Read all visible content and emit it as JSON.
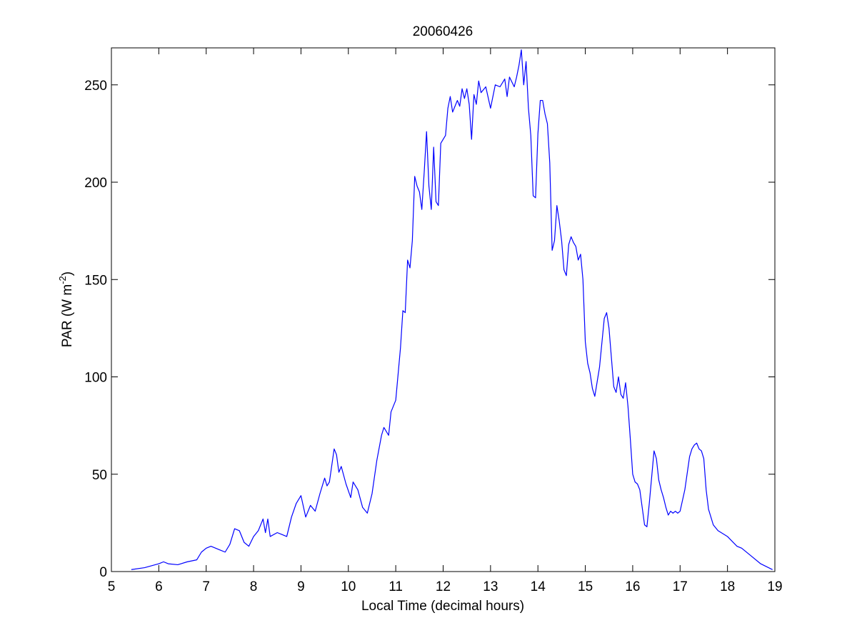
{
  "chart_data": {
    "type": "line",
    "title": "20060426",
    "xlabel": "Local Time (decimal hours)",
    "ylabel": {
      "text": "PAR (W m",
      "superscript": "-2",
      "suffix": ")"
    },
    "color": "#0000ff",
    "xlim": [
      5,
      19
    ],
    "xticks": [
      5,
      6,
      7,
      8,
      9,
      10,
      11,
      12,
      13,
      14,
      15,
      16,
      17,
      18,
      19
    ],
    "ylim": [
      0,
      269
    ],
    "yticks": [
      0,
      50,
      100,
      150,
      200,
      250
    ],
    "x": [
      5.42,
      5.7,
      6.0,
      6.1,
      6.2,
      6.4,
      6.6,
      6.8,
      6.9,
      7.0,
      7.1,
      7.2,
      7.3,
      7.4,
      7.5,
      7.6,
      7.7,
      7.8,
      7.9,
      8.0,
      8.1,
      8.2,
      8.25,
      8.3,
      8.35,
      8.5,
      8.6,
      8.7,
      8.8,
      8.9,
      9.0,
      9.1,
      9.2,
      9.3,
      9.4,
      9.5,
      9.55,
      9.6,
      9.7,
      9.75,
      9.8,
      9.85,
      9.95,
      10.05,
      10.1,
      10.2,
      10.3,
      10.4,
      10.5,
      10.6,
      10.7,
      10.75,
      10.85,
      10.9,
      11.0,
      11.1,
      11.15,
      11.2,
      11.25,
      11.3,
      11.35,
      11.4,
      11.45,
      11.5,
      11.55,
      11.6,
      11.65,
      11.7,
      11.75,
      11.8,
      11.85,
      11.9,
      11.95,
      12.05,
      12.1,
      12.15,
      12.2,
      12.3,
      12.35,
      12.4,
      12.45,
      12.5,
      12.55,
      12.6,
      12.65,
      12.7,
      12.75,
      12.8,
      12.9,
      13.0,
      13.1,
      13.2,
      13.3,
      13.35,
      13.4,
      13.5,
      13.55,
      13.6,
      13.65,
      13.7,
      13.75,
      13.8,
      13.85,
      13.9,
      13.95,
      14.0,
      14.05,
      14.1,
      14.15,
      14.2,
      14.25,
      14.3,
      14.35,
      14.4,
      14.45,
      14.5,
      14.55,
      14.6,
      14.65,
      14.7,
      14.75,
      14.8,
      14.85,
      14.9,
      14.95,
      15.0,
      15.05,
      15.1,
      15.15,
      15.2,
      15.3,
      15.4,
      15.45,
      15.5,
      15.55,
      15.6,
      15.65,
      15.7,
      15.75,
      15.8,
      15.85,
      15.9,
      15.95,
      16.0,
      16.05,
      16.1,
      16.15,
      16.2,
      16.25,
      16.3,
      16.35,
      16.45,
      16.5,
      16.55,
      16.6,
      16.65,
      16.7,
      16.75,
      16.8,
      16.85,
      16.9,
      16.95,
      17.0,
      17.1,
      17.2,
      17.25,
      17.3,
      17.35,
      17.4,
      17.45,
      17.5,
      17.55,
      17.6,
      17.7,
      17.8,
      18.0,
      18.2,
      18.3,
      18.5,
      18.7,
      18.95
    ],
    "values": [
      1,
      2,
      4,
      5,
      4,
      3.5,
      5,
      6,
      10,
      12,
      13,
      12,
      11,
      10,
      14,
      22,
      21,
      15,
      13,
      18,
      21,
      27,
      20,
      27,
      18,
      20,
      19,
      18,
      28,
      35,
      39,
      28,
      34,
      31,
      40,
      48,
      44,
      46,
      63,
      60,
      51,
      54,
      45,
      38,
      46,
      42,
      33,
      30,
      40,
      57,
      70,
      74,
      70,
      82,
      88,
      115,
      134,
      133,
      160,
      156,
      170,
      203,
      198,
      195,
      186,
      205,
      226,
      198,
      186,
      218,
      190,
      188,
      220,
      224,
      238,
      244,
      236,
      242,
      239,
      248,
      243,
      248,
      240,
      222,
      245,
      240,
      252,
      246,
      249,
      238,
      250,
      249,
      253,
      244,
      254,
      249,
      254,
      260,
      268,
      250,
      262,
      238,
      224,
      193,
      192,
      225,
      242,
      242,
      235,
      230,
      210,
      165,
      170,
      188,
      180,
      170,
      155,
      152,
      168,
      172,
      169,
      167,
      160,
      163,
      150,
      118,
      107,
      102,
      94,
      90,
      105,
      130,
      133,
      125,
      110,
      95,
      92,
      100,
      91,
      89,
      97,
      85,
      68,
      50,
      46,
      45,
      42,
      33,
      24,
      23,
      35,
      62,
      58,
      47,
      42,
      38,
      33,
      29,
      31,
      30,
      31,
      30,
      31,
      42,
      59,
      63,
      65,
      66,
      63,
      62,
      58,
      42,
      32,
      24,
      21,
      18,
      13,
      12,
      8,
      4,
      1
    ]
  }
}
